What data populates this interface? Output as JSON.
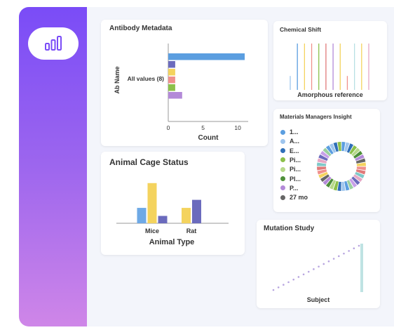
{
  "sidebar": {
    "logo_icon": "bar-chart-icon",
    "accent": "#7a4cf7"
  },
  "cards": {
    "antibody": {
      "title": "Antibody Metadata",
      "chart_data": {
        "type": "bar",
        "orientation": "horizontal",
        "categories": [
          "All values (8)"
        ],
        "series": [
          {
            "color": "#5b9ee0",
            "values": [
              11
            ]
          },
          {
            "color": "#6b6bbd",
            "values": [
              1
            ]
          },
          {
            "color": "#f4d35e",
            "values": [
              1
            ]
          },
          {
            "color": "#f0908c",
            "values": [
              1
            ]
          },
          {
            "color": "#8cc04a",
            "values": [
              1
            ]
          },
          {
            "color": "#b38ad8",
            "values": [
              2
            ]
          }
        ],
        "xlabel": "Count",
        "ylabel": "Ab Name",
        "xticks": [
          "0",
          "5",
          "10"
        ],
        "xlim": [
          0,
          11.5
        ]
      }
    },
    "chemical": {
      "title": "Chemical Shift",
      "chart_data": {
        "type": "line",
        "xlabel": "Amorphous reference",
        "lines": [
          {
            "color": "#9ec5ee",
            "height": 0.3
          },
          {
            "color": "#5b9ee0",
            "height": 1
          },
          {
            "color": "#f4d35e",
            "height": 1
          },
          {
            "color": "#f0908c",
            "height": 1
          },
          {
            "color": "#8cc04a",
            "height": 1
          },
          {
            "color": "#e07a7a",
            "height": 1
          },
          {
            "color": "#b38ad8",
            "height": 1
          },
          {
            "color": "#f4d35e",
            "height": 1
          },
          {
            "color": "#f0908c",
            "height": 0.3
          },
          {
            "color": "#b7dfe3",
            "height": 1
          },
          {
            "color": "#f4d35e",
            "height": 1
          },
          {
            "color": "#e6a8c6",
            "height": 1
          }
        ]
      }
    },
    "materials": {
      "title": "Materials Managers Insight",
      "chart_data": {
        "type": "pie",
        "legend": [
          {
            "label": "1...",
            "color": "#5b9ee0"
          },
          {
            "label": "A...",
            "color": "#9ec5ee"
          },
          {
            "label": "E...",
            "color": "#2f6fb8"
          },
          {
            "label": "Pi...",
            "color": "#8cc04a"
          },
          {
            "label": "Pi...",
            "color": "#b7d98a"
          },
          {
            "label": "Pl...",
            "color": "#4e8f3a"
          },
          {
            "label": "P...",
            "color": "#b38ad8"
          },
          {
            "label": "27 mo",
            "color": "#666666"
          }
        ],
        "ring_colors": [
          "#5b9ee0",
          "#9ec5ee",
          "#2f6fb8",
          "#8cc04a",
          "#b7d98a",
          "#4e8f3a",
          "#b38ad8",
          "#666666",
          "#f4d35e",
          "#f0908c",
          "#e07a7a",
          "#7fc8c8",
          "#e6a8c6",
          "#6b6bbd",
          "#c7a0e8",
          "#9bd0a0"
        ],
        "segments": 36
      }
    },
    "cage": {
      "title": "Animal Cage Status",
      "chart_data": {
        "type": "bar",
        "categories": [
          "Mice",
          "Rat"
        ],
        "series": [
          {
            "color": "#6ea9e6",
            "values": [
              2.3,
              0
            ]
          },
          {
            "color": "#f4d35e",
            "values": [
              6,
              2.3
            ]
          },
          {
            "color": "#6b6bbd",
            "values": [
              1.1,
              3.5
            ]
          }
        ],
        "xlabel": "Animal Type",
        "ylim": [
          0,
          6.5
        ]
      }
    },
    "mutation": {
      "title": "Mutation Study",
      "chart_data": {
        "type": "scatter",
        "xlabel": "Subject",
        "points": 18,
        "color": "#b8a5e0",
        "bar_color": "#bfe3e3"
      }
    }
  }
}
